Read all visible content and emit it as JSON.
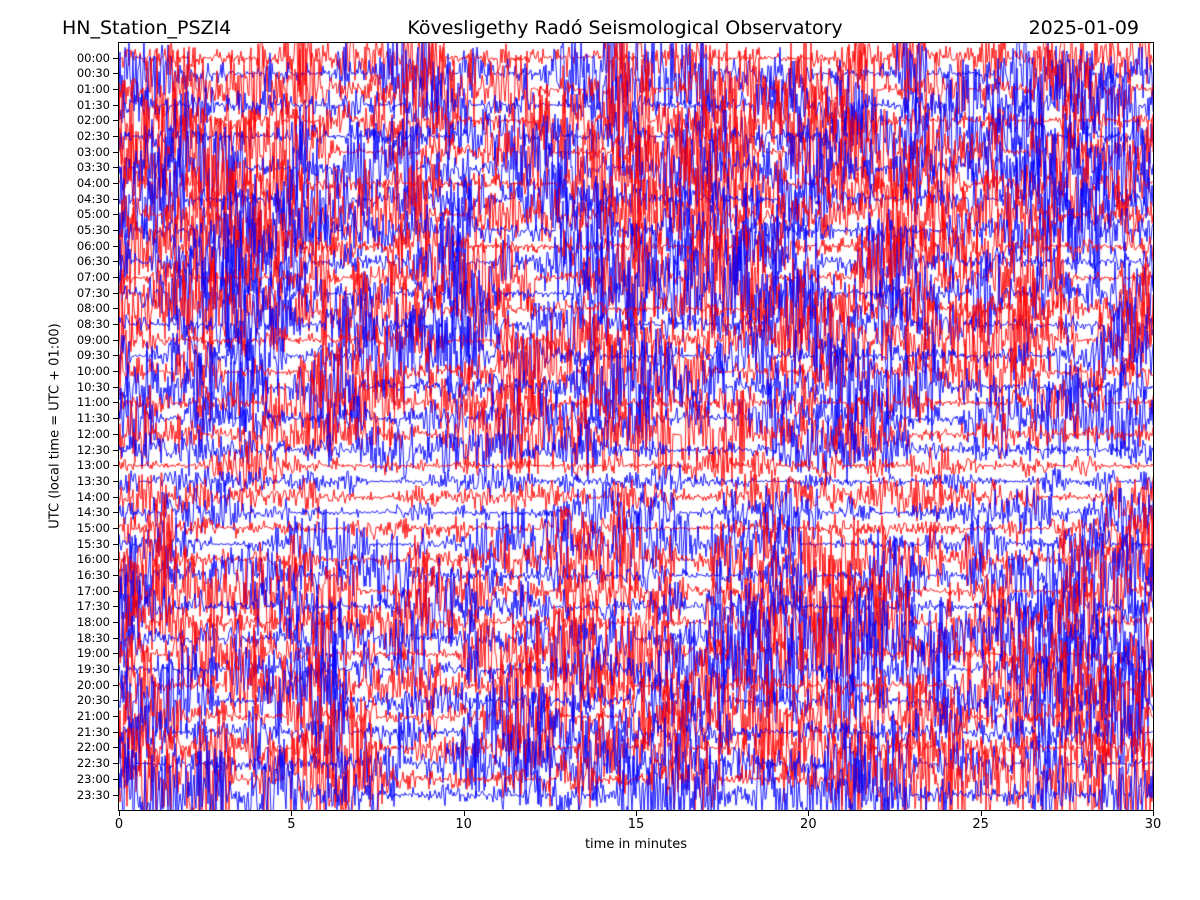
{
  "header": {
    "station": "HN_Station_PSZI4",
    "observatory": "Kövesligethy Radó Seismological Observatory",
    "date": "2025-01-09"
  },
  "chart_data": {
    "type": "helicorder",
    "title_left": "HN_Station_PSZI4",
    "title_center": "Kövesligethy Radó Seismological Observatory",
    "title_right": "2025-01-09",
    "xlabel": "time in minutes",
    "ylabel": "UTC (local time = UTC + 01:00)",
    "x_range": [
      0,
      30
    ],
    "x_ticks": [
      0,
      5,
      10,
      15,
      20,
      25,
      30
    ],
    "minutes_per_line": 30,
    "rows": 48,
    "y_tick_labels": [
      "00:00",
      "00:30",
      "01:00",
      "01:30",
      "02:00",
      "02:30",
      "03:00",
      "03:30",
      "04:00",
      "04:30",
      "05:00",
      "05:30",
      "06:00",
      "06:30",
      "07:00",
      "07:30",
      "08:00",
      "08:30",
      "09:00",
      "09:30",
      "10:00",
      "10:30",
      "11:00",
      "11:30",
      "12:00",
      "12:30",
      "13:00",
      "13:30",
      "14:00",
      "14:30",
      "15:00",
      "15:30",
      "16:00",
      "16:30",
      "17:00",
      "17:30",
      "18:00",
      "18:30",
      "19:00",
      "19:30",
      "20:00",
      "20:30",
      "21:00",
      "21:30",
      "22:00",
      "22:30",
      "23:00",
      "23:30"
    ],
    "trace_colors": [
      "#ff0000",
      "#0000ff"
    ],
    "color_rule": "alternating red/blue per 30-minute line",
    "background": "#ffffff",
    "grid": false,
    "legend": false,
    "content_note": "Continuous high-amplitude seismic noise; traces clipped and overlapping across adjacent lines for nearly the full day, with a quieter band roughly 12:30-15:30 UTC",
    "row_relative_amplitude": [
      1.0,
      1.0,
      0.98,
      1.0,
      1.0,
      0.97,
      1.0,
      1.0,
      1.0,
      0.98,
      1.0,
      1.0,
      0.97,
      1.0,
      1.0,
      1.0,
      0.95,
      0.97,
      1.0,
      0.95,
      1.0,
      1.0,
      0.95,
      0.9,
      0.78,
      0.6,
      0.45,
      0.38,
      0.45,
      0.5,
      0.55,
      0.65,
      0.85,
      0.9,
      0.95,
      1.0,
      1.0,
      0.97,
      1.0,
      1.0,
      1.0,
      0.97,
      1.0,
      1.0,
      1.0,
      0.98,
      1.0,
      0.97
    ],
    "noise_seed": 1337
  },
  "layout_values": {
    "axis_color": "#000000"
  }
}
